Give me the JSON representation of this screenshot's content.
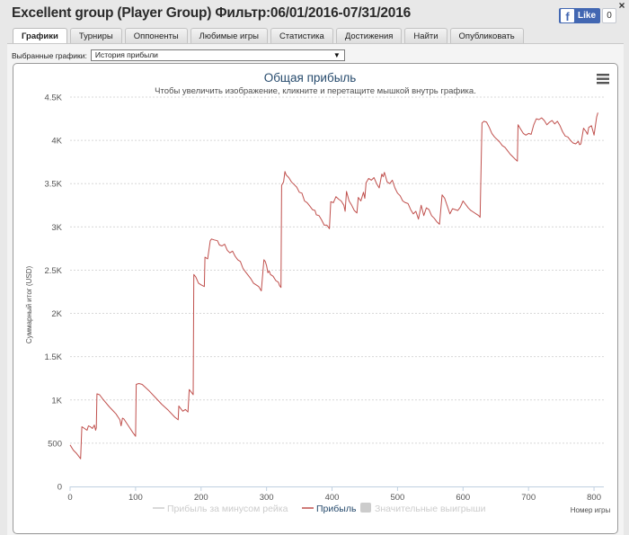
{
  "window": {
    "title": "Excellent group (Player Group) Фильтр:06/01/2016-07/31/2016",
    "fb_like_icon": "facebook-f-icon",
    "fb_like_label": "Like",
    "fb_like_count": "0",
    "close_glyph": "×"
  },
  "tabs": [
    {
      "label": "Графики",
      "active": true
    },
    {
      "label": "Турниры",
      "active": false
    },
    {
      "label": "Оппоненты",
      "active": false
    },
    {
      "label": "Любимые игры",
      "active": false
    },
    {
      "label": "Статистика",
      "active": false
    },
    {
      "label": "Достижения",
      "active": false
    },
    {
      "label": "Найти",
      "active": false
    },
    {
      "label": "Опубликовать",
      "active": false
    }
  ],
  "chart_selector": {
    "label": "Выбранные графики:",
    "value": "История прибыли",
    "arrow": "▼"
  },
  "chart_data": {
    "type": "line",
    "title": "Общая прибыль",
    "subtitle": "Чтобы увеличить изображение, кликните и перетащите мышкой внутрь графика.",
    "xlabel": "Номер игры",
    "ylabel": "Суммарный итог (USD)",
    "xlim": [
      0,
      815
    ],
    "ylim": [
      0,
      4500
    ],
    "x_ticks": [
      0,
      100,
      200,
      300,
      400,
      500,
      600,
      700,
      800
    ],
    "y_ticks": [
      {
        "value": 0,
        "label": "0"
      },
      {
        "value": 500,
        "label": "500"
      },
      {
        "value": 1000,
        "label": "1K"
      },
      {
        "value": 1500,
        "label": "1.5K"
      },
      {
        "value": 2000,
        "label": "2K"
      },
      {
        "value": 2500,
        "label": "2.5K"
      },
      {
        "value": 3000,
        "label": "3K"
      },
      {
        "value": 3500,
        "label": "3.5K"
      },
      {
        "value": 4000,
        "label": "4K"
      },
      {
        "value": 4500,
        "label": "4.5K"
      }
    ],
    "grid": true,
    "legend_position": "bottom-center",
    "legend_icon": "menu-icon",
    "colors": {
      "profit": "#c0504d",
      "disabled": "#cccccc",
      "title": "#274b6d"
    },
    "legend": [
      {
        "name": "Прибыль за минусом рейка",
        "enabled": false
      },
      {
        "name": "Прибыль",
        "enabled": true
      },
      {
        "name": "Значительные выигрыши",
        "enabled": false
      }
    ],
    "series": [
      {
        "name": "Прибыль",
        "points": [
          [
            0,
            480
          ],
          [
            5,
            420
          ],
          [
            10,
            380
          ],
          [
            16,
            320
          ],
          [
            18,
            690
          ],
          [
            22,
            670
          ],
          [
            26,
            650
          ],
          [
            28,
            700
          ],
          [
            31,
            690
          ],
          [
            34,
            670
          ],
          [
            37,
            710
          ],
          [
            39,
            650
          ],
          [
            40,
            680
          ],
          [
            41,
            1070
          ],
          [
            45,
            1060
          ],
          [
            50,
            1010
          ],
          [
            60,
            920
          ],
          [
            70,
            840
          ],
          [
            76,
            770
          ],
          [
            78,
            700
          ],
          [
            80,
            790
          ],
          [
            82,
            780
          ],
          [
            90,
            690
          ],
          [
            96,
            620
          ],
          [
            100,
            580
          ],
          [
            101,
            1180
          ],
          [
            105,
            1190
          ],
          [
            110,
            1180
          ],
          [
            120,
            1110
          ],
          [
            130,
            1030
          ],
          [
            140,
            950
          ],
          [
            150,
            880
          ],
          [
            160,
            800
          ],
          [
            165,
            770
          ],
          [
            166,
            930
          ],
          [
            168,
            910
          ],
          [
            172,
            870
          ],
          [
            176,
            890
          ],
          [
            180,
            860
          ],
          [
            182,
            1120
          ],
          [
            186,
            1080
          ],
          [
            188,
            1060
          ],
          [
            189,
            2450
          ],
          [
            192,
            2420
          ],
          [
            196,
            2350
          ],
          [
            200,
            2330
          ],
          [
            205,
            2310
          ],
          [
            206,
            2650
          ],
          [
            210,
            2630
          ],
          [
            214,
            2840
          ],
          [
            216,
            2860
          ],
          [
            220,
            2850
          ],
          [
            225,
            2840
          ],
          [
            228,
            2790
          ],
          [
            232,
            2780
          ],
          [
            236,
            2800
          ],
          [
            240,
            2730
          ],
          [
            244,
            2700
          ],
          [
            248,
            2720
          ],
          [
            252,
            2660
          ],
          [
            256,
            2620
          ],
          [
            260,
            2600
          ],
          [
            264,
            2520
          ],
          [
            268,
            2480
          ],
          [
            272,
            2440
          ],
          [
            276,
            2400
          ],
          [
            280,
            2350
          ],
          [
            284,
            2330
          ],
          [
            288,
            2310
          ],
          [
            292,
            2260
          ],
          [
            296,
            2620
          ],
          [
            298,
            2600
          ],
          [
            300,
            2550
          ],
          [
            302,
            2470
          ],
          [
            304,
            2490
          ],
          [
            306,
            2450
          ],
          [
            310,
            2430
          ],
          [
            314,
            2380
          ],
          [
            318,
            2360
          ],
          [
            320,
            2320
          ],
          [
            322,
            2300
          ],
          [
            323,
            3480
          ],
          [
            326,
            3520
          ],
          [
            328,
            3640
          ],
          [
            330,
            3600
          ],
          [
            334,
            3570
          ],
          [
            338,
            3520
          ],
          [
            342,
            3490
          ],
          [
            346,
            3460
          ],
          [
            350,
            3400
          ],
          [
            354,
            3390
          ],
          [
            358,
            3300
          ],
          [
            362,
            3280
          ],
          [
            366,
            3240
          ],
          [
            370,
            3200
          ],
          [
            374,
            3190
          ],
          [
            376,
            3140
          ],
          [
            380,
            3130
          ],
          [
            384,
            3080
          ],
          [
            388,
            3020
          ],
          [
            392,
            3020
          ],
          [
            394,
            3000
          ],
          [
            396,
            2980
          ],
          [
            398,
            3290
          ],
          [
            402,
            3280
          ],
          [
            406,
            3350
          ],
          [
            410,
            3320
          ],
          [
            414,
            3300
          ],
          [
            418,
            3250
          ],
          [
            420,
            3180
          ],
          [
            422,
            3410
          ],
          [
            426,
            3300
          ],
          [
            430,
            3250
          ],
          [
            434,
            3190
          ],
          [
            438,
            3160
          ],
          [
            440,
            3340
          ],
          [
            444,
            3300
          ],
          [
            448,
            3400
          ],
          [
            450,
            3330
          ],
          [
            452,
            3510
          ],
          [
            456,
            3560
          ],
          [
            460,
            3540
          ],
          [
            464,
            3570
          ],
          [
            468,
            3500
          ],
          [
            472,
            3450
          ],
          [
            476,
            3610
          ],
          [
            478,
            3580
          ],
          [
            480,
            3630
          ],
          [
            484,
            3520
          ],
          [
            488,
            3500
          ],
          [
            492,
            3540
          ],
          [
            496,
            3450
          ],
          [
            500,
            3390
          ],
          [
            504,
            3360
          ],
          [
            508,
            3300
          ],
          [
            512,
            3280
          ],
          [
            516,
            3270
          ],
          [
            520,
            3200
          ],
          [
            524,
            3150
          ],
          [
            528,
            3180
          ],
          [
            532,
            3090
          ],
          [
            536,
            3250
          ],
          [
            540,
            3130
          ],
          [
            544,
            3220
          ],
          [
            548,
            3200
          ],
          [
            552,
            3130
          ],
          [
            556,
            3100
          ],
          [
            560,
            3060
          ],
          [
            564,
            3030
          ],
          [
            568,
            3370
          ],
          [
            572,
            3330
          ],
          [
            576,
            3240
          ],
          [
            580,
            3150
          ],
          [
            584,
            3210
          ],
          [
            588,
            3200
          ],
          [
            592,
            3190
          ],
          [
            596,
            3230
          ],
          [
            600,
            3300
          ],
          [
            604,
            3260
          ],
          [
            608,
            3220
          ],
          [
            612,
            3190
          ],
          [
            616,
            3170
          ],
          [
            620,
            3150
          ],
          [
            624,
            3130
          ],
          [
            626,
            3110
          ],
          [
            627,
            3490
          ],
          [
            629,
            4200
          ],
          [
            632,
            4220
          ],
          [
            636,
            4210
          ],
          [
            640,
            4150
          ],
          [
            644,
            4080
          ],
          [
            648,
            4040
          ],
          [
            652,
            4010
          ],
          [
            656,
            3980
          ],
          [
            660,
            3940
          ],
          [
            664,
            3920
          ],
          [
            668,
            3880
          ],
          [
            672,
            3840
          ],
          [
            676,
            3810
          ],
          [
            680,
            3780
          ],
          [
            683,
            3760
          ],
          [
            684,
            4180
          ],
          [
            688,
            4130
          ],
          [
            692,
            4080
          ],
          [
            696,
            4060
          ],
          [
            700,
            4080
          ],
          [
            704,
            4070
          ],
          [
            708,
            4180
          ],
          [
            712,
            4250
          ],
          [
            716,
            4240
          ],
          [
            720,
            4260
          ],
          [
            724,
            4230
          ],
          [
            728,
            4180
          ],
          [
            732,
            4210
          ],
          [
            736,
            4230
          ],
          [
            740,
            4190
          ],
          [
            744,
            4220
          ],
          [
            748,
            4170
          ],
          [
            752,
            4100
          ],
          [
            756,
            4050
          ],
          [
            760,
            4040
          ],
          [
            764,
            4000
          ],
          [
            768,
            3970
          ],
          [
            772,
            3960
          ],
          [
            776,
            3990
          ],
          [
            778,
            3950
          ],
          [
            780,
            3960
          ],
          [
            784,
            4140
          ],
          [
            788,
            4100
          ],
          [
            790,
            4070
          ],
          [
            792,
            4150
          ],
          [
            796,
            4170
          ],
          [
            800,
            4060
          ],
          [
            804,
            4270
          ],
          [
            806,
            4320
          ]
        ]
      }
    ]
  }
}
